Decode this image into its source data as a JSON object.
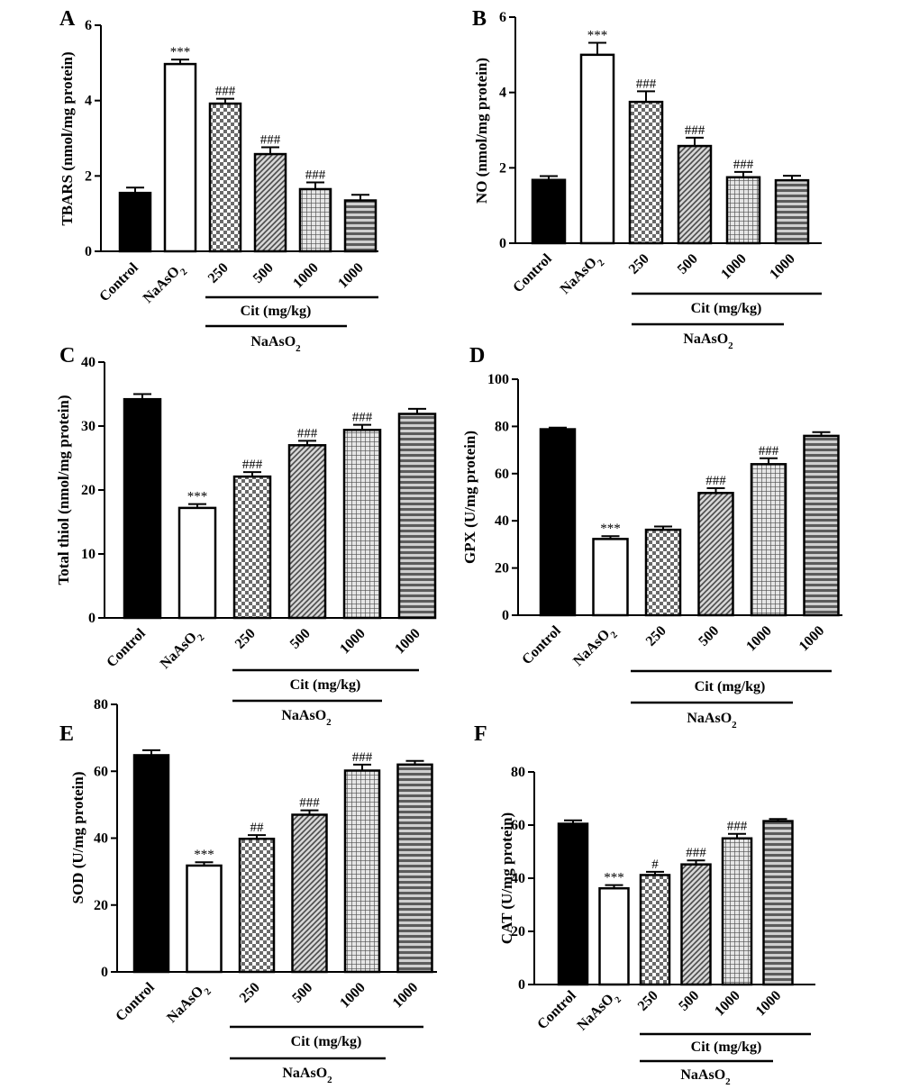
{
  "chart_data": [
    {
      "type": "bar",
      "panel_label": "A",
      "ylabel": "TBARS (nmol/mg protein)",
      "ylim": [
        0,
        6
      ],
      "yticks": [
        "0",
        "2",
        "4",
        "6"
      ],
      "categories": [
        "Control",
        "NaAsO2",
        "250",
        "500",
        "1000",
        "1000"
      ],
      "values": [
        1.55,
        4.97,
        3.92,
        2.58,
        1.65,
        1.35
      ],
      "errors": [
        0.14,
        0.12,
        0.13,
        0.18,
        0.18,
        0.15
      ],
      "significance": [
        "",
        "***",
        "###",
        "###",
        "###",
        ""
      ],
      "bracket_labels": [
        "Cit (mg/kg)",
        "NaAsO2"
      ]
    },
    {
      "type": "bar",
      "panel_label": "B",
      "ylabel": "NO (nmol/mg protein)",
      "ylim": [
        0,
        6
      ],
      "yticks": [
        "0",
        "2",
        "4",
        "6"
      ],
      "categories": [
        "Control",
        "NaAsO2",
        "250",
        "500",
        "1000",
        "1000"
      ],
      "values": [
        1.68,
        5.0,
        3.75,
        2.58,
        1.75,
        1.67
      ],
      "errors": [
        0.1,
        0.32,
        0.28,
        0.22,
        0.14,
        0.12
      ],
      "significance": [
        "",
        "***",
        "###",
        "###",
        "###",
        ""
      ],
      "bracket_labels": [
        "Cit (mg/kg)",
        "NaAsO2"
      ]
    },
    {
      "type": "bar",
      "panel_label": "C",
      "ylabel": "Total thiol (nmol/mg protein)",
      "ylim": [
        0,
        40
      ],
      "yticks": [
        "0",
        "10",
        "20",
        "30",
        "40"
      ],
      "categories": [
        "Control",
        "NaAsO2",
        "250",
        "500",
        "1000",
        "1000"
      ],
      "values": [
        34.2,
        17.2,
        22.1,
        27.0,
        29.4,
        31.9
      ],
      "errors": [
        0.8,
        0.6,
        0.7,
        0.7,
        0.8,
        0.8
      ],
      "significance": [
        "",
        "***",
        "###",
        "###",
        "###",
        ""
      ],
      "bracket_labels": [
        "Cit (mg/kg)",
        "NaAsO2"
      ]
    },
    {
      "type": "bar",
      "panel_label": "D",
      "ylabel": "GPX (U/mg protein)",
      "ylim": [
        0,
        100
      ],
      "yticks": [
        "0",
        "20",
        "40",
        "60",
        "80",
        "100"
      ],
      "categories": [
        "Control",
        "NaAsO2",
        "250",
        "500",
        "1000",
        "1000"
      ],
      "values": [
        78.8,
        32.3,
        36.2,
        51.8,
        64.0,
        76.0
      ],
      "errors": [
        0.7,
        1.2,
        1.4,
        2.0,
        2.5,
        1.6
      ],
      "significance": [
        "",
        "***",
        "",
        "###",
        "###",
        ""
      ],
      "bracket_labels": [
        "Cit (mg/kg)",
        "NaAsO2"
      ]
    },
    {
      "type": "bar",
      "panel_label": "E",
      "ylabel": "SOD (U/mg protein)",
      "ylim": [
        0,
        80
      ],
      "yticks": [
        "0",
        "20",
        "40",
        "60",
        "80"
      ],
      "categories": [
        "Control",
        "NaAsO2",
        "250",
        "500",
        "1000",
        "1000"
      ],
      "values": [
        64.8,
        31.8,
        39.8,
        47.0,
        60.2,
        62.0
      ],
      "errors": [
        1.5,
        1.0,
        1.1,
        1.3,
        1.8,
        1.1
      ],
      "significance": [
        "",
        "***",
        "##",
        "###",
        "###",
        ""
      ],
      "bracket_labels": [
        "Cit (mg/kg)",
        "NaAsO2"
      ]
    },
    {
      "type": "bar",
      "panel_label": "F",
      "ylabel": "CAT (U/mg protein)",
      "ylim": [
        0,
        80
      ],
      "yticks": [
        "0",
        "20",
        "40",
        "60",
        "80"
      ],
      "categories": [
        "Control",
        "NaAsO2",
        "250",
        "500",
        "1000",
        "1000"
      ],
      "values": [
        60.5,
        36.2,
        41.2,
        45.2,
        55.0,
        61.5
      ],
      "errors": [
        1.3,
        1.2,
        1.2,
        1.5,
        1.7,
        0.8
      ],
      "significance": [
        "",
        "***",
        "#",
        "###",
        "###",
        ""
      ],
      "bracket_labels": [
        "Cit (mg/kg)",
        "NaAsO2"
      ]
    }
  ]
}
